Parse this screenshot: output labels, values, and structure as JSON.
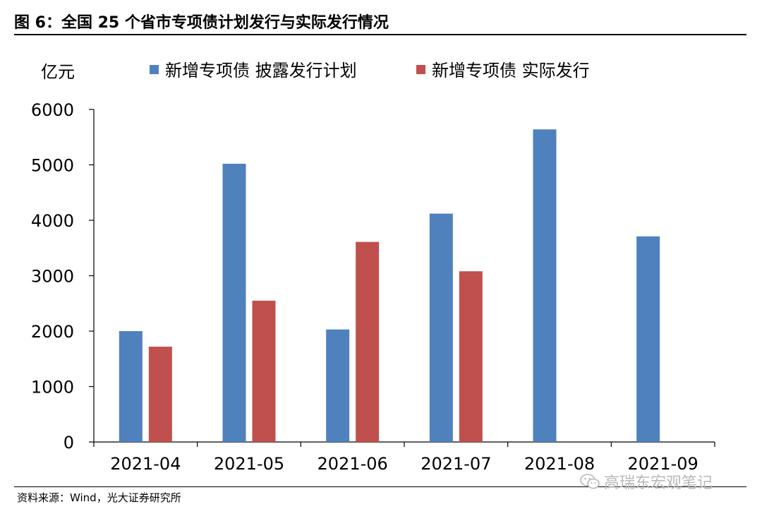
{
  "title": "图 6：全国 25 个省市专项债计划发行与实际发行情况",
  "source": "资料来源：Wind，光大证券研究所",
  "watermark": {
    "icon": "wechat-icon",
    "text": "高瑞东宏观笔记"
  },
  "colors": {
    "plan": "#4F81BD",
    "actual": "#C0504D",
    "axis": "#000000"
  },
  "chart_data": {
    "type": "bar",
    "ylabel": "亿元",
    "ylim": [
      0,
      6000
    ],
    "yticks": [
      "0",
      "1000",
      "2000",
      "3000",
      "4000",
      "5000",
      "6000"
    ],
    "categories": [
      "2021-04",
      "2021-05",
      "2021-06",
      "2021-07",
      "2021-08",
      "2021-09"
    ],
    "legend_position": "top",
    "grid": false,
    "series": [
      {
        "name": "新增专项债 披露发行计划",
        "color": "#4F81BD",
        "values": [
          2000,
          5020,
          2030,
          4120,
          5640,
          3710
        ]
      },
      {
        "name": "新增专项债 实际发行",
        "color": "#C0504D",
        "values": [
          1720,
          2550,
          3610,
          3080,
          null,
          null
        ]
      }
    ]
  }
}
